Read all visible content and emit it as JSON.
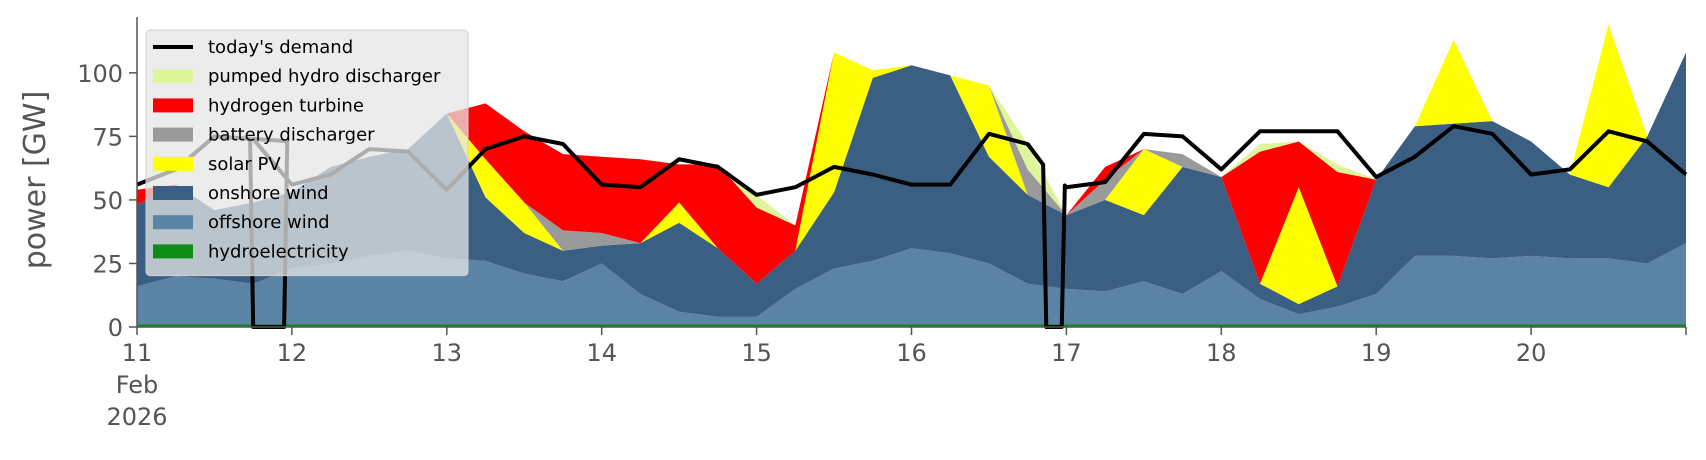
{
  "chart_data": {
    "type": "area",
    "ylabel": "power [GW]",
    "ylim": [
      0,
      120
    ],
    "yticks": [
      0,
      25,
      50,
      75,
      100
    ],
    "xlim": [
      11,
      21
    ],
    "xticks": [
      {
        "value": 11,
        "label": "11",
        "sub1": "Feb",
        "sub2": "2026"
      },
      {
        "value": 12,
        "label": "12"
      },
      {
        "value": 13,
        "label": "13"
      },
      {
        "value": 14,
        "label": "14"
      },
      {
        "value": 15,
        "label": "15"
      },
      {
        "value": 16,
        "label": "16"
      },
      {
        "value": 17,
        "label": "17"
      },
      {
        "value": 18,
        "label": "18"
      },
      {
        "value": 19,
        "label": "19"
      },
      {
        "value": 20,
        "label": "20"
      }
    ],
    "legend_position": "top-left",
    "x": [
      11.0,
      11.25,
      11.5,
      11.75,
      12.0,
      12.25,
      12.5,
      12.75,
      13.0,
      13.25,
      13.5,
      13.75,
      14.0,
      14.25,
      14.5,
      14.75,
      15.0,
      15.25,
      15.5,
      15.75,
      16.0,
      16.25,
      16.5,
      16.75,
      17.0,
      17.25,
      17.5,
      17.75,
      18.0,
      18.25,
      18.5,
      18.75,
      19.0,
      19.25,
      19.5,
      19.75,
      20.0,
      20.25,
      20.5,
      20.75,
      21.0
    ],
    "series": [
      {
        "name": "hydroelectricity",
        "color": "#0e8a16",
        "values": [
          1,
          1,
          1,
          1,
          1,
          1,
          1,
          1,
          1,
          1,
          1,
          1,
          1,
          1,
          1,
          1,
          1,
          1,
          1,
          1,
          1,
          1,
          1,
          1,
          1,
          1,
          1,
          1,
          1,
          1,
          1,
          1,
          1,
          1,
          1,
          1,
          1,
          1,
          1,
          1,
          1
        ]
      },
      {
        "name": "offshore wind",
        "color": "#5b83a6",
        "values": [
          15,
          19,
          18,
          16,
          22,
          24,
          27,
          29,
          26,
          25,
          20,
          17,
          24,
          12,
          5,
          3,
          3,
          14,
          22,
          25,
          30,
          28,
          24,
          16,
          14,
          13,
          17,
          12,
          21,
          10,
          4,
          7,
          12,
          27,
          27,
          26,
          27,
          26,
          26,
          24,
          32
        ]
      },
      {
        "name": "onshore wind",
        "color": "#3a5f83",
        "values": [
          32,
          36,
          27,
          32,
          30,
          38,
          39,
          40,
          57,
          25,
          16,
          12,
          7,
          20,
          35,
          27,
          13,
          15,
          30,
          72,
          72,
          70,
          42,
          35,
          29,
          36,
          26,
          50,
          37,
          6,
          4,
          8,
          45,
          51,
          52,
          54,
          45,
          33,
          28,
          50,
          75
        ]
      },
      {
        "name": "solar PV",
        "color": "#ffff00",
        "values": [
          0,
          0,
          0,
          0,
          0,
          0,
          0,
          0,
          0,
          15,
          12,
          0,
          0,
          0,
          8,
          0,
          0,
          0,
          55,
          3,
          0,
          0,
          28,
          0,
          0,
          0,
          26,
          0,
          0,
          0,
          46,
          0,
          0,
          0,
          33,
          0,
          0,
          0,
          64,
          0,
          0
        ]
      },
      {
        "name": "battery discharger",
        "color": "#9a9a9a",
        "values": [
          0,
          0,
          0,
          0,
          0,
          0,
          0,
          0,
          0,
          0,
          0,
          8,
          5,
          0,
          0,
          0,
          0,
          0,
          0,
          0,
          0,
          0,
          0,
          10,
          0,
          8,
          0,
          5,
          0,
          0,
          0,
          0,
          0,
          0,
          0,
          0,
          0,
          0,
          0,
          0,
          0
        ]
      },
      {
        "name": "hydrogen turbine",
        "color": "#ff0000",
        "values": [
          6,
          0,
          0,
          0,
          0,
          0,
          0,
          0,
          0,
          22,
          28,
          30,
          30,
          33,
          15,
          33,
          30,
          10,
          0,
          0,
          0,
          0,
          0,
          0,
          0,
          5,
          0,
          0,
          0,
          52,
          18,
          45,
          0,
          0,
          0,
          0,
          0,
          0,
          0,
          0,
          0
        ]
      },
      {
        "name": "pumped hydro discharger",
        "color": "#dff59b",
        "values": [
          0,
          0,
          0,
          0,
          0,
          0,
          0,
          0,
          0,
          0,
          0,
          0,
          0,
          0,
          0,
          0,
          5,
          0,
          0,
          0,
          0,
          0,
          0,
          10,
          0,
          0,
          0,
          0,
          0,
          3,
          0,
          3,
          0,
          0,
          0,
          0,
          0,
          0,
          0,
          0,
          0
        ]
      }
    ],
    "demand": {
      "name": "today's demand",
      "color": "#000000",
      "values": [
        56,
        62,
        75,
        74,
        56,
        60,
        70,
        69,
        54,
        70,
        75,
        72,
        56,
        55,
        66,
        63,
        52,
        55,
        63,
        60,
        56,
        56,
        76,
        72,
        55,
        57,
        76,
        75,
        62,
        77,
        77,
        77,
        59,
        67,
        79,
        76,
        60,
        62,
        77,
        73,
        60
      ],
      "gaps": [
        [
          11.75,
          11.95
        ],
        [
          16.87,
          16.97
        ]
      ]
    },
    "legend": [
      {
        "label": "today's demand",
        "kind": "line",
        "color": "#000000"
      },
      {
        "label": "pumped hydro discharger",
        "kind": "patch",
        "color": "#dff59b"
      },
      {
        "label": "hydrogen turbine",
        "kind": "patch",
        "color": "#ff0000"
      },
      {
        "label": "battery discharger",
        "kind": "patch",
        "color": "#9a9a9a"
      },
      {
        "label": "solar PV",
        "kind": "patch",
        "color": "#ffff00"
      },
      {
        "label": "onshore wind",
        "kind": "patch",
        "color": "#3a5f83"
      },
      {
        "label": "offshore wind",
        "kind": "patch",
        "color": "#5b83a6"
      },
      {
        "label": "hydroelectricity",
        "kind": "patch",
        "color": "#0e8a16"
      }
    ]
  }
}
